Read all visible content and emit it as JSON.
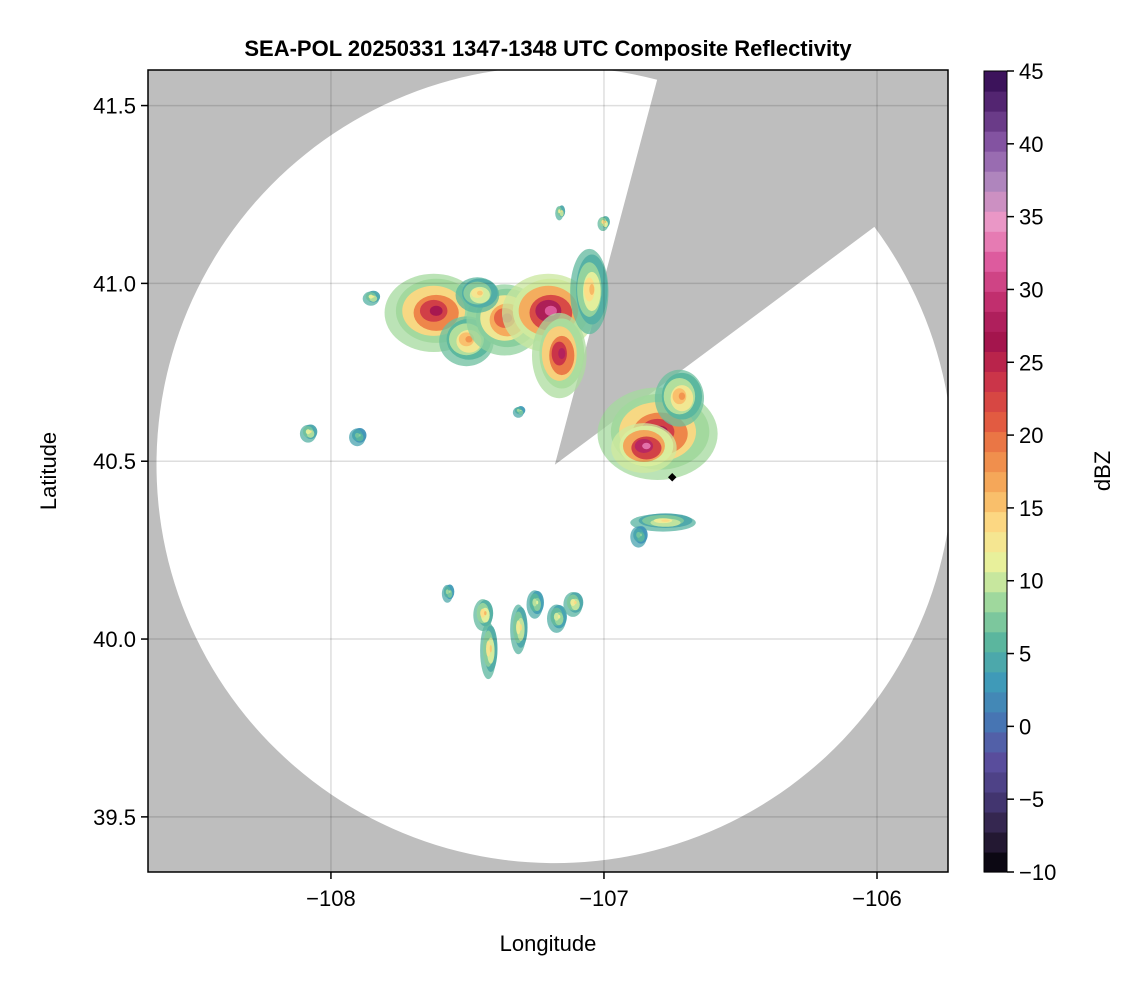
{
  "chart_data": {
    "type": "heatmap",
    "title": "SEA-POL 20250331 1347-1348 UTC Composite Reflectivity",
    "xlabel": "Longitude",
    "ylabel": "Latitude",
    "xlim": [
      -108.67,
      -105.74
    ],
    "ylim": [
      39.345,
      41.6
    ],
    "x_ticks": [
      -108,
      -107,
      -106
    ],
    "x_tick_labels": [
      "−108",
      "−107",
      "−106"
    ],
    "y_ticks": [
      39.5,
      40.0,
      40.5,
      41.0,
      41.5
    ],
    "y_tick_labels": [
      "39.5",
      "40.0",
      "40.5",
      "41.0",
      "41.5"
    ],
    "grid": true,
    "background_color": "#bebebe",
    "radar": {
      "center": [
        -107.18,
        40.49
      ],
      "max_range_deg_lat": 1.12,
      "blocked_sectors": [
        {
          "from_lat_lon": [
            41.53,
            -106.82
          ],
          "to_lat_lon": [
            41.13,
            -106.06
          ]
        }
      ]
    },
    "radar_site_marker": [
      -106.75,
      40.455
    ],
    "colorbar": {
      "label": "dBZ",
      "range": [
        -10,
        45
      ],
      "ticks": [
        -10,
        -5,
        0,
        5,
        10,
        15,
        20,
        25,
        30,
        35,
        40,
        45
      ],
      "tick_labels": [
        "−10",
        "−5",
        "0",
        "5",
        "10",
        "15",
        "20",
        "25",
        "30",
        "35",
        "40",
        "45"
      ],
      "levels": 40,
      "stops": [
        "#000004",
        "#2d1e3e",
        "#463a78",
        "#5b4fa0",
        "#4678b4",
        "#3f9ab8",
        "#59b59e",
        "#98d59d",
        "#e5f29e",
        "#fde08a",
        "#f7b25f",
        "#ee8447",
        "#df5240",
        "#c8304a",
        "#a0124d",
        "#c2306f",
        "#dd5a9d",
        "#ee98c6",
        "#b48ac0",
        "#8a5ba8",
        "#5c2c7a",
        "#300a50"
      ]
    },
    "echoes": [
      {
        "lon": -107.62,
        "lat": 40.92,
        "rx": 0.18,
        "ry": 0.11,
        "peak": 27
      },
      {
        "lon": -107.5,
        "lat": 40.84,
        "rx": 0.1,
        "ry": 0.07,
        "peak": 18
      },
      {
        "lon": -107.36,
        "lat": 40.9,
        "rx": 0.14,
        "ry": 0.1,
        "peak": 24
      },
      {
        "lon": -107.2,
        "lat": 40.92,
        "rx": 0.17,
        "ry": 0.11,
        "peak": 32
      },
      {
        "lon": -107.16,
        "lat": 40.8,
        "rx": 0.1,
        "ry": 0.12,
        "peak": 28
      },
      {
        "lon": -107.05,
        "lat": 40.98,
        "rx": 0.07,
        "ry": 0.12,
        "peak": 16
      },
      {
        "lon": -107.46,
        "lat": 40.97,
        "rx": 0.08,
        "ry": 0.05,
        "peak": 15
      },
      {
        "lon": -106.8,
        "lat": 40.58,
        "rx": 0.22,
        "ry": 0.13,
        "peak": 27
      },
      {
        "lon": -106.85,
        "lat": 40.54,
        "rx": 0.12,
        "ry": 0.07,
        "peak": 33
      },
      {
        "lon": -106.72,
        "lat": 40.68,
        "rx": 0.09,
        "ry": 0.08,
        "peak": 18
      },
      {
        "lon": -106.78,
        "lat": 40.33,
        "rx": 0.12,
        "ry": 0.025,
        "peak": 14
      },
      {
        "lon": -106.87,
        "lat": 40.29,
        "rx": 0.03,
        "ry": 0.03,
        "peak": 8
      },
      {
        "lon": -108.08,
        "lat": 40.58,
        "rx": 0.03,
        "ry": 0.025,
        "peak": 13
      },
      {
        "lon": -107.9,
        "lat": 40.57,
        "rx": 0.03,
        "ry": 0.025,
        "peak": 8
      },
      {
        "lon": -107.31,
        "lat": 40.64,
        "rx": 0.02,
        "ry": 0.015,
        "peak": 10
      },
      {
        "lon": -107.44,
        "lat": 40.07,
        "rx": 0.035,
        "ry": 0.045,
        "peak": 16
      },
      {
        "lon": -107.42,
        "lat": 39.97,
        "rx": 0.03,
        "ry": 0.08,
        "peak": 15
      },
      {
        "lon": -107.31,
        "lat": 40.03,
        "rx": 0.03,
        "ry": 0.07,
        "peak": 14
      },
      {
        "lon": -107.25,
        "lat": 40.1,
        "rx": 0.03,
        "ry": 0.04,
        "peak": 11
      },
      {
        "lon": -107.17,
        "lat": 40.06,
        "rx": 0.035,
        "ry": 0.04,
        "peak": 12
      },
      {
        "lon": -107.11,
        "lat": 40.1,
        "rx": 0.035,
        "ry": 0.035,
        "peak": 14
      },
      {
        "lon": -107.57,
        "lat": 40.13,
        "rx": 0.02,
        "ry": 0.025,
        "peak": 10
      },
      {
        "lon": -107.16,
        "lat": 41.2,
        "rx": 0.015,
        "ry": 0.02,
        "peak": 14
      },
      {
        "lon": -107.0,
        "lat": 41.17,
        "rx": 0.02,
        "ry": 0.02,
        "peak": 16
      },
      {
        "lon": -107.85,
        "lat": 40.96,
        "rx": 0.03,
        "ry": 0.02,
        "peak": 13
      }
    ]
  }
}
